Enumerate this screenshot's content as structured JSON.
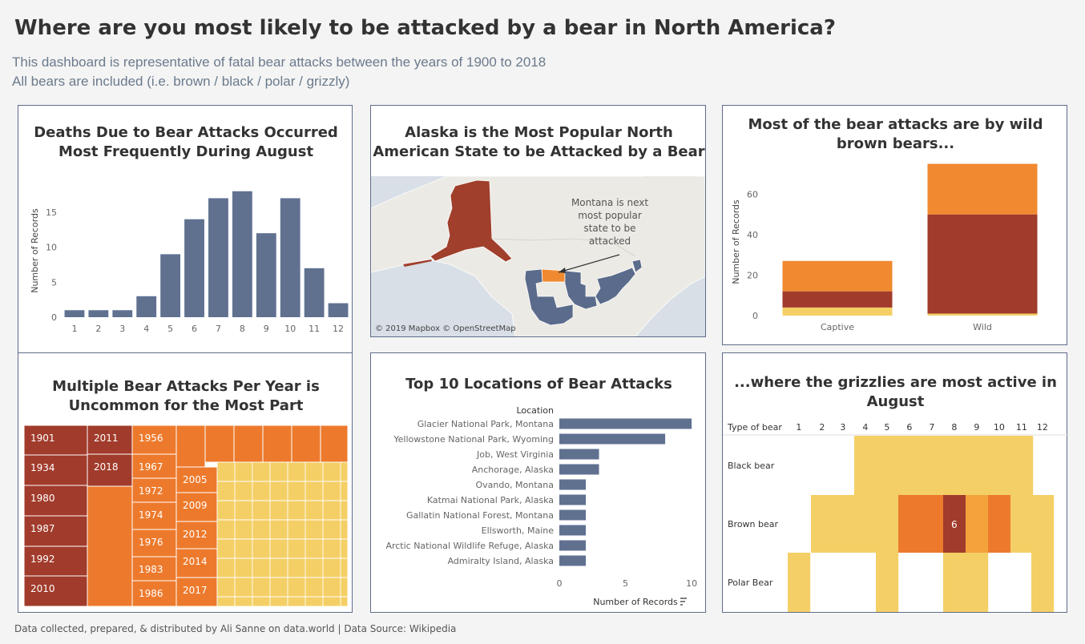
{
  "header": {
    "title": "Where are you most likely to be attacked by a bear in North America?",
    "subtitle_1": "This dashboard is representative of fatal bear attacks between the years of 1900 to 2018",
    "subtitle_2": "All bears are included (i.e. brown / black / polar / grizzly)"
  },
  "footer": {
    "text": "Data collected, prepared, & distributed by Ali Sanne on data.world | Data Source: Wikipedia"
  },
  "colors": {
    "slate": "#607190",
    "dark_red": "#a13b2b",
    "orange": "#ed7a2c",
    "light_orange": "#f4a23c",
    "yellow": "#f4cf66"
  },
  "panels": {
    "monthly": {
      "title_1": "Deaths Due to Bear Attacks Occurred",
      "title_2": "Most Frequently During August"
    },
    "map": {
      "title_1": "Alaska is the Most Popular North",
      "title_2": "American State to be Attacked by a Bear"
    },
    "wild": {
      "title_1": "Most of the bear attacks are by wild",
      "title_2": "brown bears..."
    },
    "treemap": {
      "title_1": "Multiple Bear Attacks Per Year is",
      "title_2": "Uncommon for the Most Part"
    },
    "top10": {
      "title": "Top 10 Locations of Bear Attacks"
    },
    "grizzly": {
      "title_1": "...where the grizzlies are most active in",
      "title_2": "August"
    }
  },
  "chart_data": [
    {
      "id": "monthly",
      "type": "bar",
      "title": "Deaths Due to Bear Attacks Occurred Most Frequently During August",
      "categories": [
        "1",
        "2",
        "3",
        "4",
        "5",
        "6",
        "7",
        "8",
        "9",
        "10",
        "11",
        "12"
      ],
      "values": [
        1,
        1,
        1,
        3,
        9,
        14,
        17,
        18,
        12,
        17,
        7,
        2
      ],
      "ylabel": "Number of Records",
      "xlabel": "",
      "ylim": [
        0,
        19
      ],
      "yticks": [
        0,
        5,
        10,
        15
      ],
      "grid": false
    },
    {
      "id": "map",
      "type": "map",
      "title": "Alaska is the Most Popular North American State to be Attacked by a Bear",
      "annotation": [
        "Montana is next",
        "most popular",
        "state to be",
        "attacked"
      ],
      "attribution": "© 2019 Mapbox © OpenStreetMap",
      "highlight": [
        "Alaska",
        "Montana"
      ]
    },
    {
      "id": "wild",
      "type": "stacked-bar",
      "title": "Most of the bear attacks are by wild brown bears...",
      "categories": [
        "Captive",
        "Wild"
      ],
      "ylabel": "Number of Records",
      "ylim": [
        0,
        76
      ],
      "yticks": [
        0,
        20,
        40,
        60
      ],
      "series": [
        {
          "values": [
            4,
            1
          ],
          "color": "#f4cf66"
        },
        {
          "values": [
            8,
            49
          ],
          "color": "#a13b2b"
        },
        {
          "values": [
            15,
            25
          ],
          "color": "#f0892f"
        }
      ]
    },
    {
      "id": "treemap",
      "type": "treemap",
      "title": "Multiple Bear Attacks Per Year is Uncommon for the Most Part",
      "labels": [
        "1901",
        "1934",
        "1980",
        "1987",
        "1992",
        "2010",
        "2011",
        "2018",
        "1956",
        "1967",
        "1972",
        "1974",
        "1976",
        "1983",
        "1986",
        "2005",
        "2009",
        "2012",
        "2014",
        "2017"
      ]
    },
    {
      "id": "top10",
      "type": "bar",
      "orientation": "horizontal",
      "title": "Top 10 Locations of Bear Attacks",
      "row_header": "Location",
      "categories": [
        "Glacier National Park, Montana",
        "Yellowstone National Park, Wyoming",
        "Job, West Virginia",
        "Anchorage, Alaska",
        "Ovando, Montana",
        "Katmai National Park, Alaska",
        "Gallatin National Forest, Montana",
        "Ellsworth, Maine",
        "Arctic National Wildlife Refuge, Alaska",
        "Admiralty Island, Alaska"
      ],
      "values": [
        10,
        8,
        3,
        3,
        2,
        2,
        2,
        2,
        2,
        2
      ],
      "xlabel": "Number of Records",
      "xlim": [
        0,
        10.6
      ],
      "xticks": [
        0,
        5,
        10
      ]
    },
    {
      "id": "grizzly",
      "type": "heatmap",
      "title": "...where the grizzlies are most active in August",
      "row_header": "Type of bear",
      "columns": [
        "1",
        "2",
        "3",
        "4",
        "5",
        "6",
        "7",
        "8",
        "9",
        "10",
        "11",
        "12"
      ],
      "rows": [
        "Black bear",
        "Brown bear",
        "Polar Bear"
      ],
      "values": [
        [
          0,
          0,
          0,
          1,
          1,
          1,
          1,
          1,
          1,
          1,
          1,
          0
        ],
        [
          0,
          1,
          1,
          1,
          1,
          3,
          4,
          6,
          2,
          3,
          1,
          1
        ],
        [
          1,
          0,
          0,
          0,
          1,
          0,
          0,
          1,
          1,
          0,
          0,
          1
        ]
      ],
      "labeled_value": "6"
    }
  ]
}
